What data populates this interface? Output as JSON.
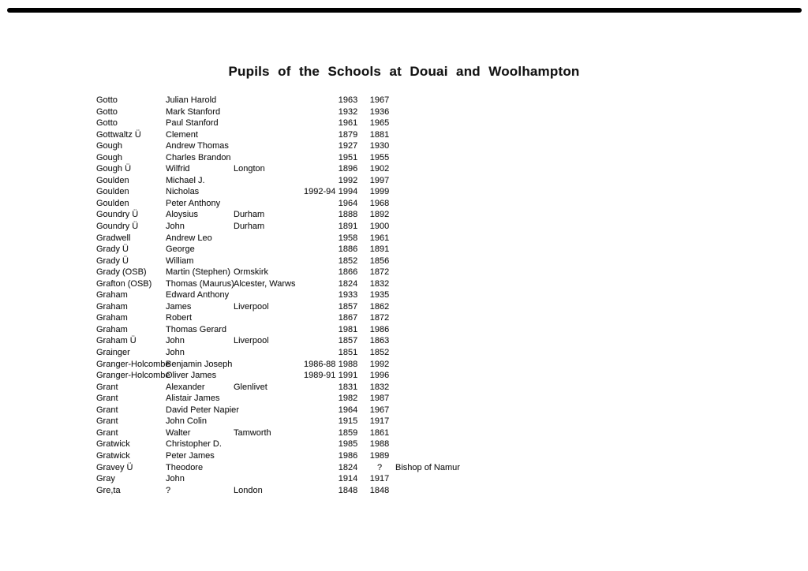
{
  "page": {
    "title": "Pupils of the Schools at Douai and Woolhampton"
  },
  "colors": {
    "background": "#ffffff",
    "text": "#1b1b1b",
    "scan_bar": "#000000"
  },
  "table": {
    "columns": [
      "surname",
      "forenames",
      "place",
      "attended",
      "from",
      "to",
      "note"
    ],
    "rows": [
      {
        "surname": "Gotto",
        "forenames": "Julian Harold",
        "place": "",
        "attended": "",
        "from": "1963",
        "to": "1967",
        "note": ""
      },
      {
        "surname": "Gotto",
        "forenames": "Mark Stanford",
        "place": "",
        "attended": "",
        "from": "1932",
        "to": "1936",
        "note": ""
      },
      {
        "surname": "Gotto",
        "forenames": "Paul Stanford",
        "place": "",
        "attended": "",
        "from": "1961",
        "to": "1965",
        "note": ""
      },
      {
        "surname": "Gottwaltz Ü",
        "forenames": "Clement",
        "place": "",
        "attended": "",
        "from": "1879",
        "to": "1881",
        "note": ""
      },
      {
        "surname": "Gough",
        "forenames": "Andrew Thomas",
        "place": "",
        "attended": "",
        "from": "1927",
        "to": "1930",
        "note": ""
      },
      {
        "surname": "Gough",
        "forenames": "Charles Brandon",
        "place": "",
        "attended": "",
        "from": "1951",
        "to": "1955",
        "note": ""
      },
      {
        "surname": "Gough Ü",
        "forenames": "Wilfrid",
        "place": "Longton",
        "attended": "",
        "from": "1896",
        "to": "1902",
        "note": ""
      },
      {
        "surname": "Goulden",
        "forenames": "Michael J.",
        "place": "",
        "attended": "",
        "from": "1992",
        "to": "1997",
        "note": ""
      },
      {
        "surname": "Goulden",
        "forenames": "Nicholas",
        "place": "",
        "attended": "1992-94",
        "from": "1994",
        "to": "1999",
        "note": ""
      },
      {
        "surname": "Goulden",
        "forenames": "Peter Anthony",
        "place": "",
        "attended": "",
        "from": "1964",
        "to": "1968",
        "note": ""
      },
      {
        "surname": "Goundry Ü",
        "forenames": "Aloysius",
        "place": "Durham",
        "attended": "",
        "from": "1888",
        "to": "1892",
        "note": ""
      },
      {
        "surname": "Goundry Ü",
        "forenames": "John",
        "place": "Durham",
        "attended": "",
        "from": "1891",
        "to": "1900",
        "note": ""
      },
      {
        "surname": "Gradwell",
        "forenames": "Andrew Leo",
        "place": "",
        "attended": "",
        "from": "1958",
        "to": "1961",
        "note": ""
      },
      {
        "surname": "Grady Ü",
        "forenames": "George",
        "place": "",
        "attended": "",
        "from": "1886",
        "to": "1891",
        "note": ""
      },
      {
        "surname": "Grady Ü",
        "forenames": "William",
        "place": "",
        "attended": "",
        "from": "1852",
        "to": "1856",
        "note": ""
      },
      {
        "surname": "Grady (OSB)",
        "forenames": "Martin (Stephen)",
        "place": "Ormskirk",
        "attended": "",
        "from": "1866",
        "to": "1872",
        "note": ""
      },
      {
        "surname": "Grafton (OSB)",
        "forenames": "Thomas (Maurus)",
        "place": "Alcester, Warws",
        "attended": "",
        "from": "1824",
        "to": "1832",
        "note": ""
      },
      {
        "surname": "Graham",
        "forenames": "Edward Anthony",
        "place": "",
        "attended": "",
        "from": "1933",
        "to": "1935",
        "note": ""
      },
      {
        "surname": "Graham",
        "forenames": "James",
        "place": "Liverpool",
        "attended": "",
        "from": "1857",
        "to": "1862",
        "note": ""
      },
      {
        "surname": "Graham",
        "forenames": "Robert",
        "place": "",
        "attended": "",
        "from": "1867",
        "to": "1872",
        "note": ""
      },
      {
        "surname": "Graham",
        "forenames": "Thomas Gerard",
        "place": "",
        "attended": "",
        "from": "1981",
        "to": "1986",
        "note": ""
      },
      {
        "surname": "Graham Ü",
        "forenames": "John",
        "place": "Liverpool",
        "attended": "",
        "from": "1857",
        "to": "1863",
        "note": ""
      },
      {
        "surname": "Grainger",
        "forenames": "John",
        "place": "",
        "attended": "",
        "from": "1851",
        "to": "1852",
        "note": ""
      },
      {
        "surname": "Granger-Holcombe",
        "forenames": "Benjamin Joseph",
        "place": "",
        "attended": "1986-88",
        "from": "1988",
        "to": "1992",
        "note": ""
      },
      {
        "surname": "Granger-Holcombe",
        "forenames": "Oliver James",
        "place": "",
        "attended": "1989-91",
        "from": "1991",
        "to": "1996",
        "note": ""
      },
      {
        "surname": "Grant",
        "forenames": "Alexander",
        "place": "Glenlivet",
        "attended": "",
        "from": "1831",
        "to": "1832",
        "note": ""
      },
      {
        "surname": "Grant",
        "forenames": "Alistair James",
        "place": "",
        "attended": "",
        "from": "1982",
        "to": "1987",
        "note": ""
      },
      {
        "surname": "Grant",
        "forenames": "David Peter Napier",
        "place": "",
        "attended": "",
        "from": "1964",
        "to": "1967",
        "note": ""
      },
      {
        "surname": "Grant",
        "forenames": "John Colin",
        "place": "",
        "attended": "",
        "from": "1915",
        "to": "1917",
        "note": ""
      },
      {
        "surname": "Grant",
        "forenames": "Walter",
        "place": "Tamworth",
        "attended": "",
        "from": "1859",
        "to": "1861",
        "note": ""
      },
      {
        "surname": "Gratwick",
        "forenames": "Christopher D.",
        "place": "",
        "attended": "",
        "from": "1985",
        "to": "1988",
        "note": ""
      },
      {
        "surname": "Gratwick",
        "forenames": "Peter James",
        "place": "",
        "attended": "",
        "from": "1986",
        "to": "1989",
        "note": ""
      },
      {
        "surname": "Gravey Ü",
        "forenames": "Theodore",
        "place": "",
        "attended": "",
        "from": "1824",
        "to": "?",
        "note": "Bishop of Namur"
      },
      {
        "surname": "Gray",
        "forenames": "John",
        "place": "",
        "attended": "",
        "from": "1914",
        "to": "1917",
        "note": ""
      },
      {
        "surname": "Gre,ta",
        "forenames": "?",
        "place": "London",
        "attended": "",
        "from": "1848",
        "to": "1848",
        "note": ""
      }
    ]
  }
}
